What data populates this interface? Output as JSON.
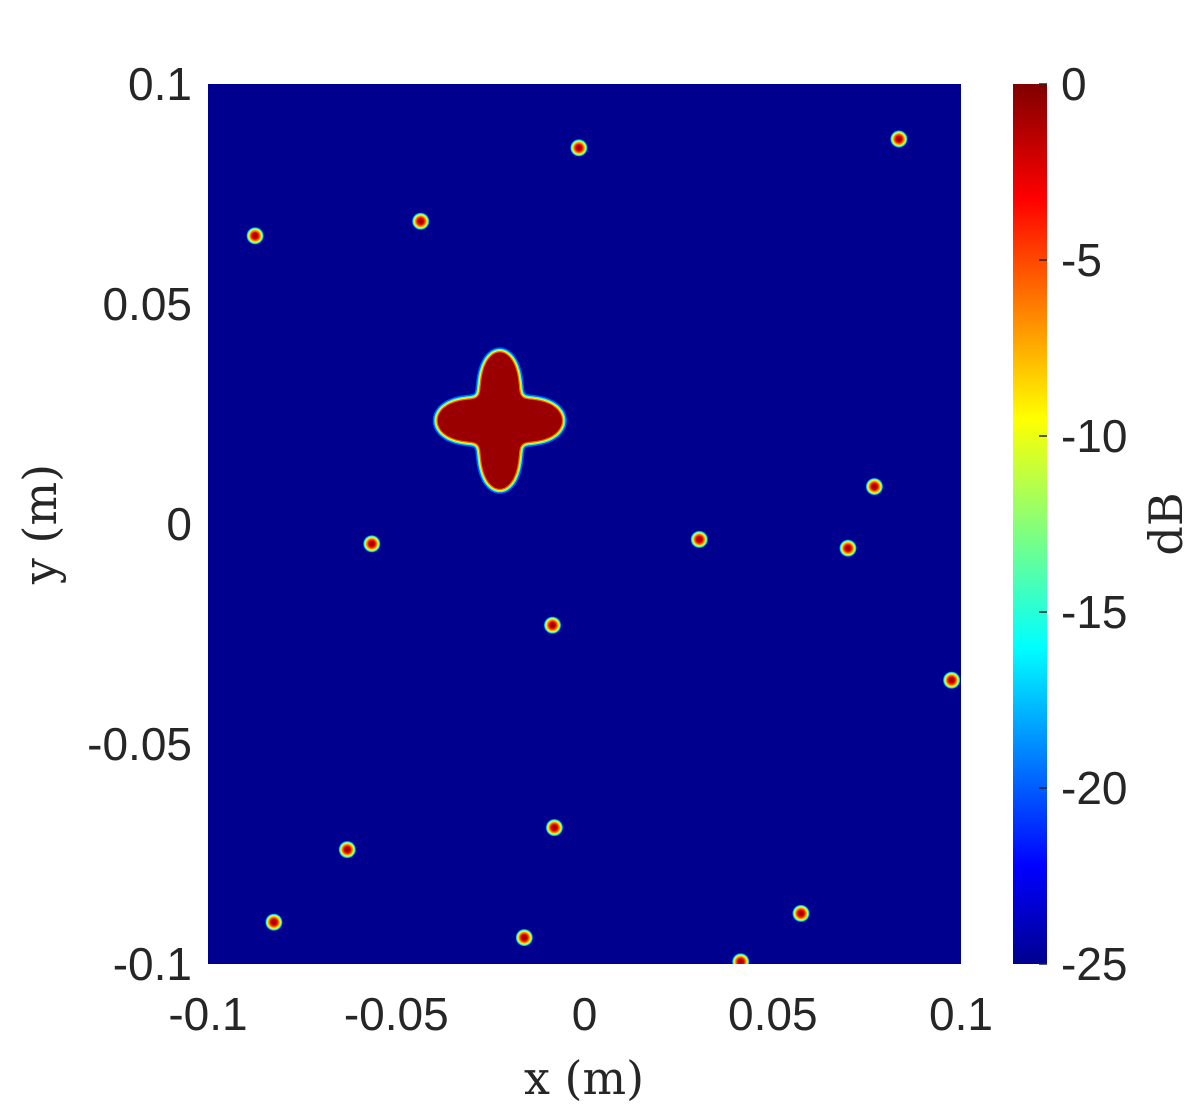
{
  "chart_data": {
    "type": "heatmap",
    "xlabel": "x (m)",
    "ylabel": "y (m)",
    "xlim": [
      -0.1,
      0.1
    ],
    "ylim": [
      -0.1,
      0.1
    ],
    "x_ticks": [
      {
        "value": -0.1,
        "label": "-0.1"
      },
      {
        "value": -0.05,
        "label": "-0.05"
      },
      {
        "value": 0,
        "label": "0"
      },
      {
        "value": 0.05,
        "label": "0.05"
      },
      {
        "value": 0.1,
        "label": "0.1"
      }
    ],
    "y_ticks": [
      {
        "value": 0.1,
        "label": "0.1"
      },
      {
        "value": 0.05,
        "label": "0.05"
      },
      {
        "value": 0,
        "label": "0"
      },
      {
        "value": -0.05,
        "label": "-0.05"
      },
      {
        "value": -0.1,
        "label": "-0.1"
      }
    ],
    "colorbar": {
      "label": "dB",
      "range": [
        -25,
        0
      ],
      "colormap": "jet",
      "ticks": [
        {
          "value": 0,
          "label": "0"
        },
        {
          "value": -5,
          "label": "-5"
        },
        {
          "value": -10,
          "label": "-10"
        },
        {
          "value": -15,
          "label": "-15"
        },
        {
          "value": -20,
          "label": "-20"
        },
        {
          "value": -25,
          "label": "-25"
        }
      ]
    },
    "background_value_db": -25,
    "shapes": [
      {
        "kind": "four-pointed-star",
        "center": [
          -0.0225,
          0.0235
        ],
        "arm_length_x": 0.0165,
        "arm_length_y": 0.0155,
        "value_db": 0
      }
    ],
    "points": [
      {
        "x": -0.0875,
        "y": 0.0655,
        "value_db": 0
      },
      {
        "x": -0.0435,
        "y": 0.0688,
        "value_db": 0
      },
      {
        "x": -0.0015,
        "y": 0.0855,
        "value_db": 0
      },
      {
        "x": 0.0835,
        "y": 0.0875,
        "value_db": 0
      },
      {
        "x": 0.077,
        "y": 0.0085,
        "value_db": 0
      },
      {
        "x": -0.0565,
        "y": -0.0045,
        "value_db": 0
      },
      {
        "x": 0.0305,
        "y": -0.0035,
        "value_db": 0
      },
      {
        "x": 0.07,
        "y": -0.0055,
        "value_db": 0
      },
      {
        "x": -0.0085,
        "y": -0.023,
        "value_db": 0
      },
      {
        "x": 0.0975,
        "y": -0.0355,
        "value_db": 0
      },
      {
        "x": -0.008,
        "y": -0.069,
        "value_db": 0
      },
      {
        "x": -0.063,
        "y": -0.074,
        "value_db": 0
      },
      {
        "x": 0.0575,
        "y": -0.0885,
        "value_db": 0
      },
      {
        "x": -0.0825,
        "y": -0.0905,
        "value_db": 0
      },
      {
        "x": -0.016,
        "y": -0.094,
        "value_db": 0
      },
      {
        "x": 0.0415,
        "y": -0.0995,
        "value_db": 0
      }
    ]
  }
}
